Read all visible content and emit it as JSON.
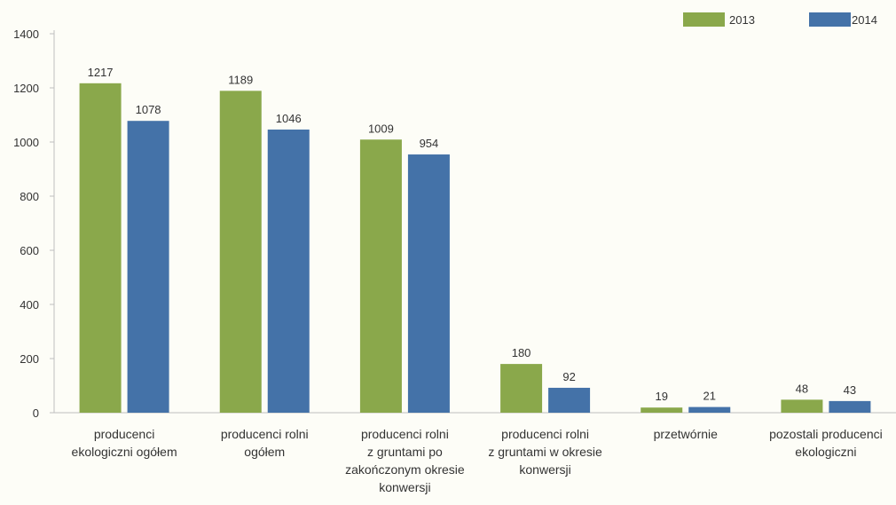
{
  "chart_data": {
    "type": "bar",
    "categories": [
      [
        "producenci",
        "ekologiczni ogółem"
      ],
      [
        "producenci rolni",
        "ogółem"
      ],
      [
        "producenci rolni",
        "z gruntami po",
        "zakończonym okresie",
        "konwersji"
      ],
      [
        "producenci rolni",
        "z gruntami w okresie",
        "konwersji"
      ],
      [
        "przetwórnie"
      ],
      [
        "pozostali producenci",
        "ekologiczni"
      ]
    ],
    "series": [
      {
        "name": "2013",
        "color": "#8aa84b",
        "values": [
          1217,
          1189,
          1009,
          180,
          19,
          48
        ]
      },
      {
        "name": "2014",
        "color": "#4472a8",
        "values": [
          1078,
          1046,
          954,
          92,
          21,
          43
        ]
      }
    ],
    "yticks": [
      0,
      200,
      400,
      600,
      800,
      1000,
      1200,
      1400
    ],
    "ylim": [
      0,
      1400
    ],
    "legend": "top-right",
    "grid": false
  }
}
